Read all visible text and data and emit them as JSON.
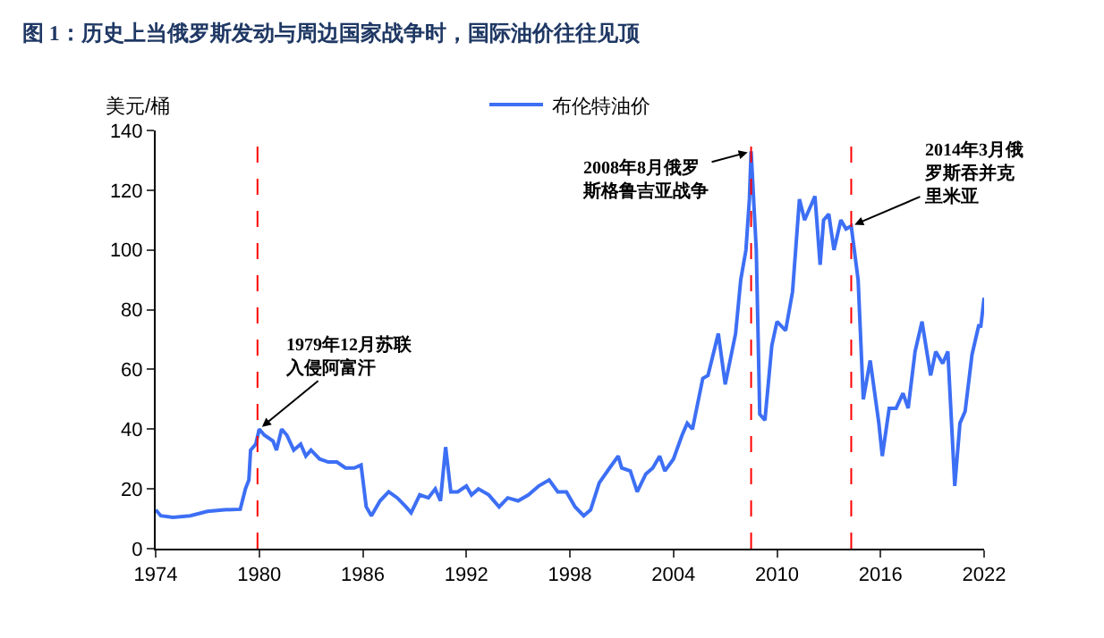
{
  "chart_data": {
    "type": "line",
    "title": "图 1：历史上当俄罗斯发动与周边国家战争时，国际油价往往见顶",
    "ylabel": "美元/桶",
    "x": [
      1974,
      1974.3,
      1975,
      1976,
      1977,
      1978,
      1978.9,
      1979.2,
      1979.4,
      1979.5,
      1979.8,
      1980,
      1980.3,
      1980.8,
      1981,
      1981.3,
      1981.6,
      1982,
      1982.4,
      1982.7,
      1983,
      1983.5,
      1984,
      1984.5,
      1985,
      1985.5,
      1985.9,
      1986.2,
      1986.5,
      1986.7,
      1987,
      1987.5,
      1988,
      1988.5,
      1988.8,
      1989.3,
      1989.8,
      1990.2,
      1990.5,
      1990.8,
      1991.1,
      1991.5,
      1992,
      1992.3,
      1992.7,
      1993.3,
      1993.9,
      1994.4,
      1995,
      1995.6,
      1996.2,
      1996.8,
      1997.3,
      1997.8,
      1998.3,
      1998.8,
      1999.2,
      1999.7,
      2000.3,
      2000.8,
      2001,
      2001.5,
      2001.9,
      2002.4,
      2002.8,
      2003.2,
      2003.5,
      2004,
      2004.5,
      2004.8,
      2005.1,
      2005.7,
      2006,
      2006.6,
      2007,
      2007.6,
      2007.9,
      2008.2,
      2008.4,
      2008.5,
      2008.8,
      2009,
      2009.3,
      2009.7,
      2010,
      2010.5,
      2010.9,
      2011.3,
      2011.6,
      2012.2,
      2012.5,
      2012.7,
      2013,
      2013.3,
      2013.7,
      2014,
      2014.3,
      2014.7,
      2015,
      2015.4,
      2015.9,
      2016.1,
      2016.5,
      2016.9,
      2017.3,
      2017.6,
      2018,
      2018.4,
      2018.9,
      2019.2,
      2019.6,
      2019.9,
      2020.3,
      2020.6,
      2020.9,
      2021.3,
      2021.7,
      2021.8,
      2022
    ],
    "series": [
      {
        "name": "布伦特油价",
        "color": "#3d6ff5",
        "values": [
          13,
          11,
          10.5,
          11,
          12.5,
          13,
          13.2,
          20,
          23,
          33,
          35,
          40,
          38,
          36,
          33,
          40,
          38,
          33,
          35,
          31,
          33,
          30,
          29,
          29,
          27,
          27,
          28,
          14,
          11,
          13,
          16,
          19,
          17,
          14,
          12,
          18,
          17,
          20,
          16,
          34,
          19,
          19,
          21,
          18,
          20,
          18,
          14,
          17,
          16,
          18,
          21,
          23,
          19,
          19,
          14,
          11,
          13,
          22,
          27,
          31,
          27,
          26,
          19,
          25,
          27,
          31,
          26,
          30,
          38,
          42,
          40,
          57,
          58,
          72,
          55,
          72,
          90,
          100,
          117,
          133,
          100,
          45,
          43,
          68,
          76,
          73,
          86,
          117,
          110,
          118,
          95,
          110,
          112,
          100,
          110,
          107,
          108,
          90,
          50,
          63,
          42,
          31,
          47,
          47,
          52,
          47,
          66,
          76,
          58,
          66,
          62,
          66,
          21,
          42,
          46,
          65,
          75,
          74,
          84
        ]
      }
    ],
    "xlim": [
      1974,
      2022
    ],
    "xticks": [
      1974,
      1980,
      1986,
      1992,
      1998,
      2004,
      2010,
      2016,
      2022
    ],
    "ylim": [
      0,
      140
    ],
    "yticks": [
      0,
      20,
      40,
      60,
      80,
      100,
      120,
      140
    ],
    "ref_lines": [
      {
        "axis": "x",
        "value": 1979.9,
        "color": "#ff0000",
        "line_style": "dashed"
      },
      {
        "axis": "x",
        "value": 2008.5,
        "color": "#ff0000",
        "line_style": "dashed"
      },
      {
        "axis": "x",
        "value": 2014.3,
        "color": "#ff0000",
        "line_style": "dashed"
      }
    ],
    "annotations": [
      {
        "text": "1979年12月苏联入侵阿富汗",
        "x": 1980,
        "y": 40
      },
      {
        "text": "2008年8月俄罗斯格鲁吉亚战争",
        "x": 2008.5,
        "y": 133
      },
      {
        "text": "2014年3月俄罗斯吞并克里米亚",
        "x": 2014.3,
        "y": 108
      }
    ],
    "grid": false,
    "legend": "top",
    "marker": "none",
    "line_style": "solid"
  }
}
